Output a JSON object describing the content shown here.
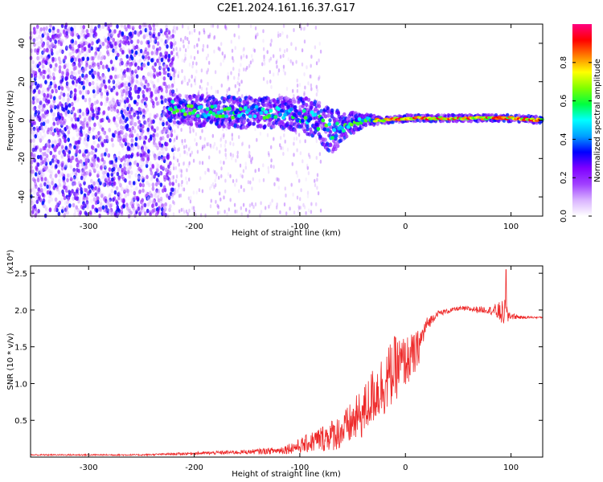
{
  "title": "C2E1.2024.161.16.37.G17",
  "colors": {
    "snr_line": "#ee2a2a",
    "dot_low": "#7f00ff",
    "dot_mid": "#00e0ff",
    "dot_high": "#ff2020",
    "axis": "#000000"
  },
  "chart_data": [
    {
      "type": "heatmap",
      "title": "C2E1.2024.161.16.37.G17",
      "xlabel": "Height of straight line (km)",
      "ylabel": "Frequency (Hz)",
      "xlim": [
        -355,
        130
      ],
      "ylim": [
        -50,
        50
      ],
      "x_ticks": [
        -300,
        -200,
        -100,
        0,
        100
      ],
      "y_ticks": [
        -40,
        -20,
        0,
        20,
        40
      ],
      "colorbar": {
        "label": "Normalized spectral amplitude",
        "range": [
          0,
          1
        ],
        "ticks": [
          "0.0",
          "0.2",
          "0.4",
          "0.6",
          "0.8"
        ],
        "colormap": [
          "#ffffff",
          "#d9b3ff",
          "#a040ff",
          "#7f00ff",
          "#0000ff",
          "#00a0ff",
          "#00ffff",
          "#00ff40",
          "#80ff00",
          "#ffff00",
          "#ff8000",
          "#ff0000",
          "#ff0080"
        ]
      },
      "ridge": {
        "description_points_x": [
          -220,
          -200,
          -160,
          -120,
          -90,
          -70,
          -55,
          -40,
          -20,
          0,
          50,
          100,
          130
        ],
        "description_points_freq": [
          7,
          5,
          4,
          4,
          2,
          -6,
          -2,
          0,
          0,
          1,
          1,
          1,
          0
        ],
        "spread_hz": [
          10,
          10,
          10,
          10,
          12,
          14,
          8,
          4,
          2,
          2,
          2,
          2,
          2
        ]
      },
      "noise_band_x": [
        -355,
        -220
      ],
      "sparse_band_x": [
        -220,
        -80
      ]
    },
    {
      "type": "line",
      "xlabel": "Height of straight line (km)",
      "ylabel": "SNR (10 * v/v)",
      "y_multiplier": "(x10⁴)",
      "xlim": [
        -355,
        130
      ],
      "ylim": [
        0,
        2.6
      ],
      "x_ticks": [
        -300,
        -200,
        -100,
        0,
        100
      ],
      "y_ticks": [
        "0.5",
        "1.0",
        "1.5",
        "2.0",
        "2.5"
      ],
      "envelope": {
        "x": [
          -355,
          -250,
          -200,
          -150,
          -120,
          -100,
          -80,
          -60,
          -40,
          -30,
          -20,
          -10,
          0,
          10,
          20,
          30,
          50,
          80,
          95,
          100,
          110,
          130
        ],
        "mean": [
          0.03,
          0.03,
          0.05,
          0.07,
          0.09,
          0.15,
          0.25,
          0.35,
          0.6,
          0.85,
          1.0,
          1.2,
          1.3,
          1.4,
          1.8,
          1.95,
          2.02,
          2.0,
          1.95,
          1.92,
          1.9,
          1.9
        ],
        "amplitude": [
          0.01,
          0.01,
          0.02,
          0.03,
          0.05,
          0.1,
          0.18,
          0.25,
          0.35,
          0.4,
          0.45,
          0.45,
          0.35,
          0.3,
          0.1,
          0.04,
          0.03,
          0.05,
          0.2,
          0.05,
          0.02,
          0.01
        ]
      }
    }
  ]
}
